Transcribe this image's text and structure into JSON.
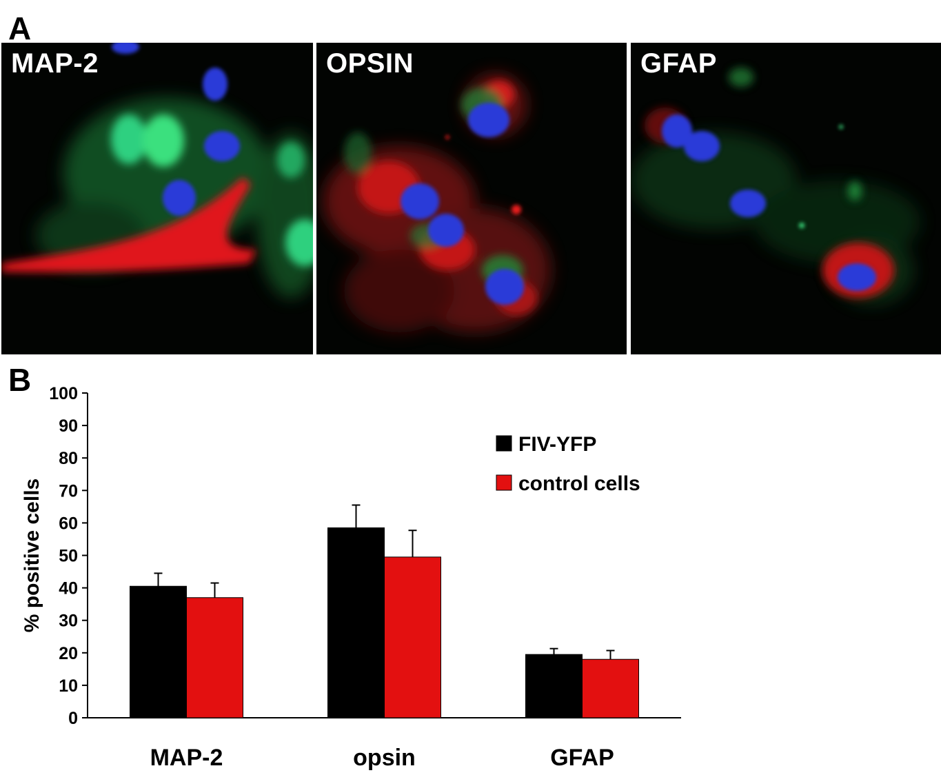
{
  "panels": {
    "a": "A",
    "b": "B"
  },
  "micrographs": [
    {
      "label": "MAP-2"
    },
    {
      "label": "OPSIN"
    },
    {
      "label": "GFAP"
    }
  ],
  "colors": {
    "series1": "#000000",
    "series2": "#e31010",
    "nuclei": "#2a3bd8",
    "green": "#22c455"
  },
  "chart_data": {
    "type": "bar",
    "categories": [
      "MAP-2",
      "opsin",
      "GFAP"
    ],
    "series": [
      {
        "name": "FIV-YFP",
        "values": [
          40.5,
          58.5,
          19.5
        ],
        "errors": [
          4,
          7,
          1.8
        ],
        "color": "#000000"
      },
      {
        "name": "control cells",
        "values": [
          37,
          49.5,
          18
        ],
        "errors": [
          4.5,
          8.2,
          2.7
        ],
        "color": "#e31010"
      }
    ],
    "title": "",
    "xlabel": "",
    "ylabel": "% positive cells",
    "ylim": [
      0,
      100
    ],
    "yticks": [
      "0",
      "10",
      "20",
      "30",
      "40",
      "50",
      "60",
      "70",
      "80",
      "90",
      "100"
    ],
    "grid": false,
    "legend": "top-right"
  }
}
